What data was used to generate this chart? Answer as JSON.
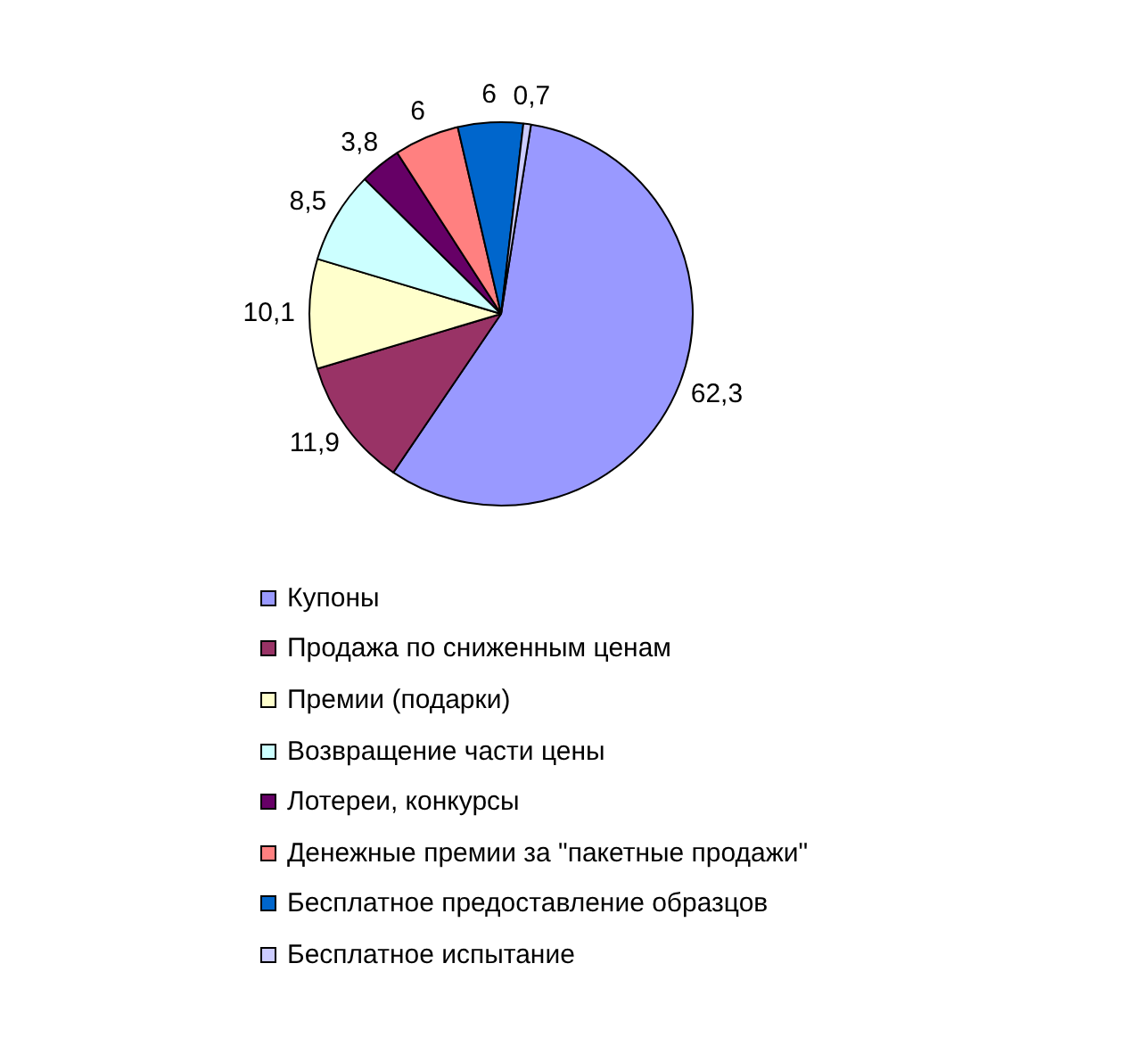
{
  "chart_data": {
    "type": "pie",
    "categories": [
      "Купоны",
      "Продажа по сниженным ценам",
      "Премии (подарки)",
      "Возвращение части цены",
      "Лотереи, конкурсы",
      "Денежные премии за \"пакетные продажи\"",
      "Бесплатное предоставление образцов",
      "Бесплатное испытание"
    ],
    "values": [
      62.3,
      11.9,
      10.1,
      8.5,
      3.8,
      6,
      6,
      0.7
    ],
    "colors": [
      "#9999ff",
      "#993366",
      "#ffffcc",
      "#ccffff",
      "#660066",
      "#ff8080",
      "#0066cc",
      "#ccccff"
    ],
    "value_labels": [
      "62,3",
      "11,9",
      "10,1",
      "8,5",
      "3,8",
      "6",
      "6",
      "0,7"
    ],
    "legend": "bottom"
  }
}
